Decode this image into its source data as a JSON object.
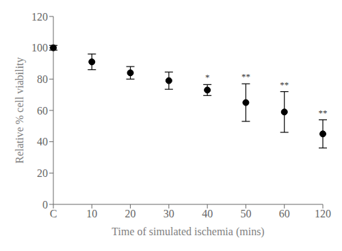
{
  "chart_data": {
    "type": "scatter",
    "categories": [
      "C",
      "10",
      "20",
      "30",
      "40",
      "50",
      "60",
      "120"
    ],
    "values": [
      100.0,
      91.0,
      84.0,
      79.0,
      73.0,
      65.0,
      59.0,
      45.0
    ],
    "errors": [
      1.5,
      5.0,
      4.0,
      5.5,
      3.5,
      12.0,
      13.0,
      9.0
    ],
    "annotations": [
      null,
      null,
      null,
      null,
      "*",
      "**",
      "**",
      "**"
    ],
    "xlabel": "Time of simulated ischemia (mins)",
    "ylabel": "Relative % cell viability",
    "ylim": [
      0,
      120
    ],
    "yticks": [
      0,
      20,
      40,
      60,
      80,
      100,
      120
    ],
    "color": "#000000",
    "marker": "circle",
    "grid": false
  }
}
